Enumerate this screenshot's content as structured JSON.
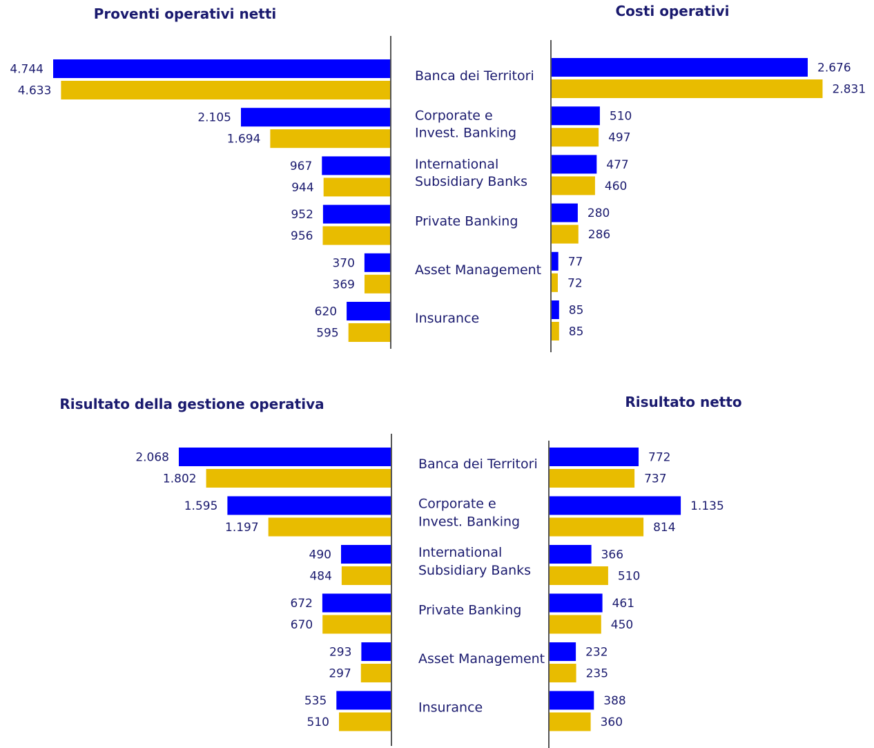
{
  "colors": {
    "series_primary": "#0000ff",
    "series_secondary": "#e8bc00",
    "text": "#1a1a6e",
    "axis": "#555555"
  },
  "chart_data": [
    {
      "type": "bar",
      "orientation": "horizontal",
      "direction": "leftward",
      "title": "Proventi operativi netti",
      "categories": [
        "Banca dei Territori",
        "Corporate e Invest. Banking",
        "International Subsidiary Banks",
        "Private Banking",
        "Asset Management",
        "Insurance"
      ],
      "series": [
        {
          "values": [
            4744,
            2105,
            967,
            952,
            370,
            620
          ],
          "labels": [
            "4.744",
            "2.105",
            "967",
            "952",
            "370",
            "620"
          ]
        },
        {
          "values": [
            4633,
            1694,
            944,
            956,
            369,
            595
          ],
          "labels": [
            "4.633",
            "1.694",
            "944",
            "956",
            "369",
            "595"
          ]
        }
      ]
    },
    {
      "type": "bar",
      "orientation": "horizontal",
      "direction": "rightward",
      "title": "Costi operativi",
      "categories": [
        "Banca dei Territori",
        "Corporate e Invest. Banking",
        "International Subsidiary Banks",
        "Private Banking",
        "Asset Management",
        "Insurance"
      ],
      "series": [
        {
          "values": [
            2676,
            510,
            477,
            280,
            77,
            85
          ],
          "labels": [
            "2.676",
            "510",
            "477",
            "280",
            "77",
            "85"
          ]
        },
        {
          "values": [
            2831,
            497,
            460,
            286,
            72,
            85
          ],
          "labels": [
            "2.831",
            "497",
            "460",
            "286",
            "72",
            "85"
          ]
        }
      ]
    },
    {
      "type": "bar",
      "orientation": "horizontal",
      "direction": "leftward",
      "title": "Risultato della gestione operativa",
      "categories": [
        "Banca dei Territori",
        "Corporate e Invest. Banking",
        "International Subsidiary Banks",
        "Private Banking",
        "Asset Management",
        "Insurance"
      ],
      "series": [
        {
          "values": [
            2068,
            1595,
            490,
            672,
            293,
            535
          ],
          "labels": [
            "2.068",
            "1.595",
            "490",
            "672",
            "293",
            "535"
          ]
        },
        {
          "values": [
            1802,
            1197,
            484,
            670,
            297,
            510
          ],
          "labels": [
            "1.802",
            "1.197",
            "484",
            "670",
            "297",
            "510"
          ]
        }
      ]
    },
    {
      "type": "bar",
      "orientation": "horizontal",
      "direction": "rightward",
      "title": "Risultato netto",
      "categories": [
        "Banca dei Territori",
        "Corporate e Invest. Banking",
        "International Subsidiary Banks",
        "Private Banking",
        "Asset Management",
        "Insurance"
      ],
      "series": [
        {
          "values": [
            772,
            1135,
            366,
            461,
            232,
            388
          ],
          "labels": [
            "772",
            "1.135",
            "366",
            "461",
            "232",
            "388"
          ]
        },
        {
          "values": [
            737,
            814,
            510,
            450,
            235,
            360
          ],
          "labels": [
            "737",
            "814",
            "510",
            "450",
            "235",
            "360"
          ]
        }
      ]
    }
  ],
  "category_labels": [
    {
      "categories": [
        [
          "Banca dei Territori"
        ],
        [
          "Corporate e",
          "Invest. Banking"
        ],
        [
          "International",
          "Subsidiary Banks"
        ],
        [
          "Private Banking"
        ],
        [
          "Asset Management"
        ],
        [
          "Insurance"
        ]
      ]
    },
    {
      "categories": [
        [
          "Banca dei Territori"
        ],
        [
          "Corporate e",
          "Invest. Banking"
        ],
        [
          "International",
          "Subsidiary Banks"
        ],
        [
          "Private Banking"
        ],
        [
          "Asset Management"
        ],
        [
          "Insurance"
        ]
      ]
    }
  ]
}
